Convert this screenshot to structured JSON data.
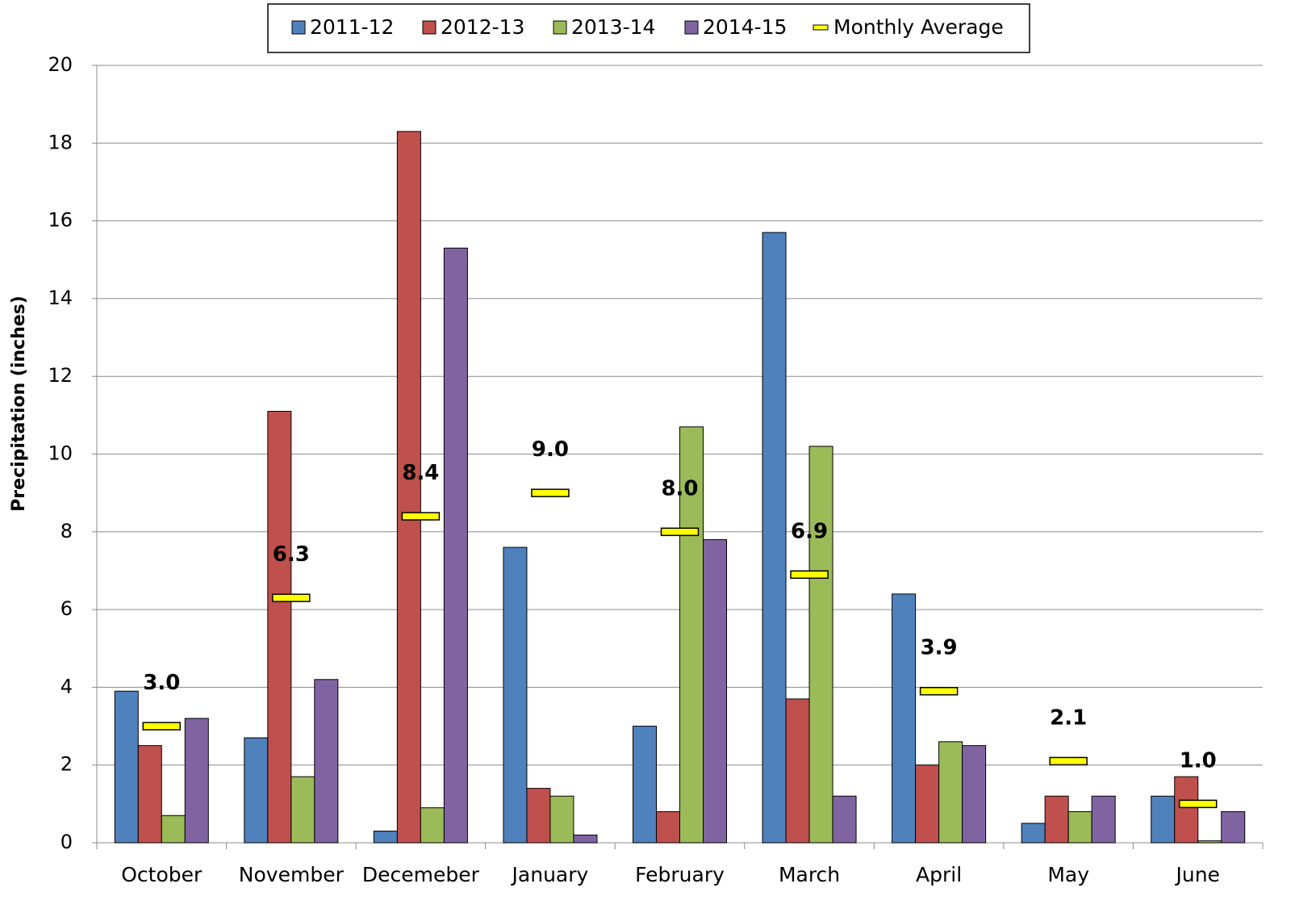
{
  "chart_data": {
    "type": "bar",
    "y_label": "Precipitation (inches)",
    "categories": [
      "October",
      "November",
      "Decemeber",
      "January",
      "February",
      "March",
      "April",
      "May",
      "June"
    ],
    "series": [
      {
        "name": "2011-12",
        "color": "#4f81bd",
        "values": [
          3.9,
          2.7,
          0.3,
          7.6,
          3.0,
          15.7,
          6.4,
          0.5,
          1.2
        ]
      },
      {
        "name": "2012-13",
        "color": "#c0504d",
        "values": [
          2.5,
          11.1,
          18.3,
          1.4,
          0.8,
          3.7,
          2.0,
          1.2,
          1.7
        ]
      },
      {
        "name": "2013-14",
        "color": "#9bbb59",
        "values": [
          0.7,
          1.7,
          0.9,
          1.2,
          10.7,
          10.2,
          2.6,
          0.8,
          0.05
        ]
      },
      {
        "name": "2014-15",
        "color": "#8064a2",
        "values": [
          3.2,
          4.2,
          15.3,
          0.2,
          7.8,
          1.2,
          2.5,
          1.2,
          0.8
        ]
      },
      {
        "name": "Monthly Average",
        "color": "#ffff00",
        "mark": "dash",
        "values": [
          3.0,
          6.3,
          8.4,
          9.0,
          8.0,
          6.9,
          3.9,
          2.1,
          1.0
        ],
        "value_labels": [
          "3.0",
          "6.3",
          "8.4",
          "9.0",
          "8.0",
          "6.9",
          "3.9",
          "2.1",
          "1.0"
        ]
      }
    ],
    "ylim": [
      0,
      20
    ],
    "yticks": [
      0,
      2,
      4,
      6,
      8,
      10,
      12,
      14,
      16,
      18,
      20
    ],
    "grid": true,
    "legend": "top"
  }
}
